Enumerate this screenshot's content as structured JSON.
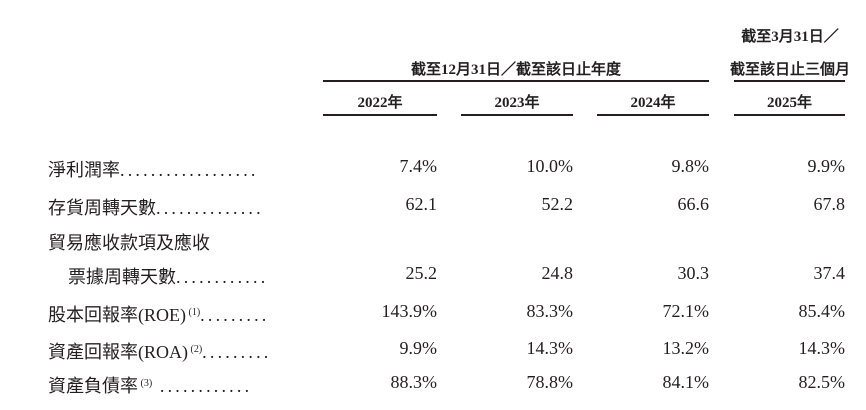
{
  "header": {
    "group_fy": "截至12月31日／截至該日止年度",
    "group_q_line1": "截至3月31日／",
    "group_q_line2": "截至該日止三個月",
    "years": [
      "2022年",
      "2023年",
      "2024年",
      "2025年"
    ]
  },
  "rows": [
    {
      "label": "淨利潤率",
      "note": "",
      "dots": "..................",
      "values": [
        "7.4%",
        "10.0%",
        "9.8%",
        "9.9%"
      ]
    },
    {
      "label": "存貨周轉天數",
      "note": "",
      "dots": "..............",
      "values": [
        "62.1",
        "52.2",
        "66.6",
        "67.8"
      ]
    },
    {
      "label": "貿易應收款項及應收",
      "note": "",
      "dots": "",
      "values": []
    },
    {
      "label": "票據周轉天數",
      "note": "",
      "dots": "............",
      "values": [
        "25.2",
        "24.8",
        "30.3",
        "37.4"
      ]
    },
    {
      "label": "股本回報率(ROE)",
      "note": "(1)",
      "dots": ".........",
      "values": [
        "143.9%",
        "83.3%",
        "72.1%",
        "85.4%"
      ]
    },
    {
      "label": "資產回報率(ROA)",
      "note": "(2)",
      "dots": ".........",
      "values": [
        "9.9%",
        "14.3%",
        "13.2%",
        "14.3%"
      ]
    },
    {
      "label": "資產負債率",
      "note": "(3)",
      "dots": " ............",
      "values": [
        "88.3%",
        "78.8%",
        "84.1%",
        "82.5%"
      ]
    }
  ]
}
